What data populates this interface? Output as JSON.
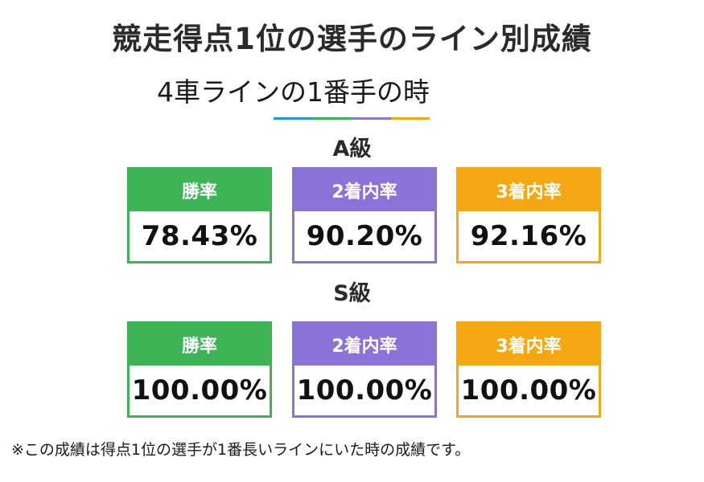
{
  "title": "競走得点1位の選手のライン別成績",
  "subtitle": "4車ラインの1番手の時",
  "divider_colors": [
    "#1e9bd7",
    "#3cb455",
    "#8a72d6",
    "#f4a712"
  ],
  "colors": {
    "win": "#3cb455",
    "second": "#8a72d6",
    "third": "#f4a712"
  },
  "sections": [
    {
      "grade": "A級",
      "cards": [
        {
          "label": "勝率",
          "value": "78.43%"
        },
        {
          "label": "2着内率",
          "value": "90.20%"
        },
        {
          "label": "3着内率",
          "value": "92.16%"
        }
      ]
    },
    {
      "grade": "S級",
      "cards": [
        {
          "label": "勝率",
          "value": "100.00%"
        },
        {
          "label": "2着内率",
          "value": "100.00%"
        },
        {
          "label": "3着内率",
          "value": "100.00%"
        }
      ]
    }
  ],
  "footnote": "※この成績は得点1位の選手が1番長いラインにいた時の成績です。"
}
